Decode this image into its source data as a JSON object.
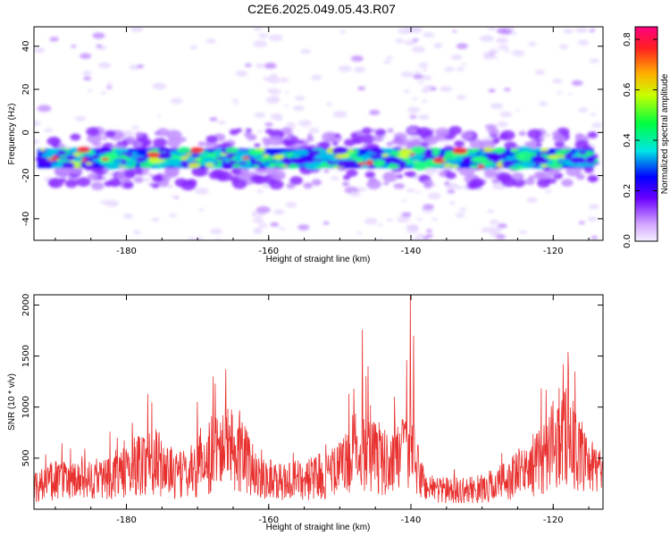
{
  "title": "C2E6.2025.049.05.43.R07",
  "chart_data": [
    {
      "type": "heatmap",
      "xlabel": "Height of straight line (km)",
      "ylabel": "Frequency (Hz)",
      "xlim": [
        -193,
        -113
      ],
      "ylim": [
        -50,
        49
      ],
      "xticks": [
        "-180",
        "-160",
        "-140",
        "-120"
      ],
      "yticks": [
        "-40",
        "-20",
        "0",
        "20",
        "40"
      ],
      "colorbar": {
        "label": "Normalized spectral amplitude",
        "range": [
          0.0,
          0.85
        ],
        "ticks": [
          "0.0",
          "0.2",
          "0.4",
          "0.6",
          "0.8"
        ]
      },
      "band": {
        "center_frequency": -12,
        "width": 10
      }
    },
    {
      "type": "line",
      "xlabel": "Height of straight line (km)",
      "ylabel": "SNR (10 * v/v)",
      "xlim": [
        -193,
        -113
      ],
      "ylim": [
        0,
        2100
      ],
      "xticks": [
        "-180",
        "-160",
        "-140",
        "-120"
      ],
      "yticks": [
        "500",
        "1000",
        "1500",
        "2000"
      ],
      "color": "#e8312f",
      "envelope": [
        [
          -193,
          260
        ],
        [
          -190,
          330
        ],
        [
          -186,
          300
        ],
        [
          -183,
          360
        ],
        [
          -180,
          420
        ],
        [
          -178,
          520
        ],
        [
          -176,
          560
        ],
        [
          -174,
          400
        ],
        [
          -172,
          380
        ],
        [
          -170,
          460
        ],
        [
          -168,
          620
        ],
        [
          -166,
          820
        ],
        [
          -164,
          640
        ],
        [
          -162,
          420
        ],
        [
          -160,
          360
        ],
        [
          -158,
          300
        ],
        [
          -155,
          330
        ],
        [
          -152,
          380
        ],
        [
          -150,
          450
        ],
        [
          -148,
          640
        ],
        [
          -146,
          720
        ],
        [
          -144,
          520
        ],
        [
          -142,
          560
        ],
        [
          -140,
          620
        ],
        [
          -138,
          260
        ],
        [
          -136,
          220
        ],
        [
          -134,
          200
        ],
        [
          -132,
          210
        ],
        [
          -130,
          230
        ],
        [
          -128,
          280
        ],
        [
          -126,
          350
        ],
        [
          -124,
          430
        ],
        [
          -122,
          540
        ],
        [
          -120,
          720
        ],
        [
          -118,
          860
        ],
        [
          -116,
          520
        ],
        [
          -114,
          420
        ],
        [
          -113,
          400
        ]
      ],
      "peaks": [
        [
          -177,
          1130
        ],
        [
          -170,
          1050
        ],
        [
          -167.5,
          1230
        ],
        [
          -166,
          1370
        ],
        [
          -148,
          1180
        ],
        [
          -146.8,
          1760
        ],
        [
          -146,
          1400
        ],
        [
          -140.6,
          1460
        ],
        [
          -140.1,
          2100
        ],
        [
          -139.6,
          1700
        ],
        [
          -121,
          1170
        ],
        [
          -118.6,
          1420
        ],
        [
          -117.9,
          1540
        ],
        [
          -115.5,
          650
        ]
      ]
    }
  ]
}
